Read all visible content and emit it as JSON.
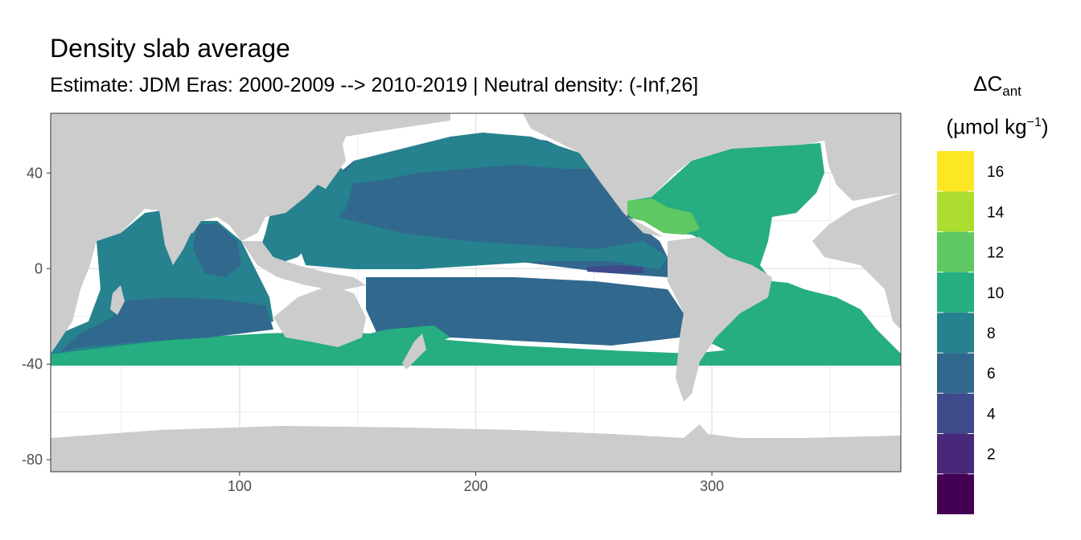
{
  "title": "Density slab average",
  "subtitle": "Estimate: JDM Eras: 2000-2009 --> 2010-2019 | Neutral density: (-Inf,26]",
  "colors": {
    "land": "#cccccc",
    "no_data": "#ffffff",
    "panel_border": "#333333",
    "grid": "#ebebeb"
  },
  "chart_data": {
    "type": "heatmap",
    "map_kind": "global ocean field on longitude-latitude grid",
    "x_ticks": [
      100,
      200,
      300
    ],
    "y_ticks": [
      40,
      0,
      -40,
      -80
    ],
    "xlim": [
      20,
      380
    ],
    "ylim": [
      -85,
      65
    ],
    "grid": true,
    "legend": {
      "position": "right",
      "title_main": "ΔC",
      "title_sub": "ant",
      "unit_prefix": "(µmol kg",
      "unit_sup": "−1",
      "unit_suffix": ")",
      "bins": [
        {
          "min": 0,
          "max": 2,
          "color": "#440154"
        },
        {
          "min": 2,
          "max": 4,
          "color": "#482878"
        },
        {
          "min": 4,
          "max": 6,
          "color": "#3e4a89"
        },
        {
          "min": 6,
          "max": 8,
          "color": "#31688e"
        },
        {
          "min": 8,
          "max": 10,
          "color": "#26828e"
        },
        {
          "min": 10,
          "max": 12,
          "color": "#26ad81"
        },
        {
          "min": 12,
          "max": 14,
          "color": "#5ec962"
        },
        {
          "min": 14,
          "max": 16,
          "color": "#addc30"
        },
        {
          "min": 16,
          "max": 18,
          "color": "#fde725"
        }
      ],
      "labels": [
        {
          "value": 2,
          "text": "2"
        },
        {
          "value": 4,
          "text": "4"
        },
        {
          "value": 6,
          "text": "6"
        },
        {
          "value": 8,
          "text": "8"
        },
        {
          "value": 10,
          "text": "10"
        },
        {
          "value": 12,
          "text": "12"
        },
        {
          "value": 14,
          "text": "14"
        },
        {
          "value": 16,
          "text": "16"
        }
      ]
    },
    "regions": [
      {
        "name": "north-pacific-gyre",
        "value_bin": "6-8"
      },
      {
        "name": "subpolar-north-pacific",
        "value_bin": "8-10"
      },
      {
        "name": "eastern-tropical-pacific",
        "value_bin": "6-8"
      },
      {
        "name": "equatorial-pacific-band",
        "value_bin": "8-10"
      },
      {
        "name": "south-pacific-subtropics",
        "value_bin": "6-8"
      },
      {
        "name": "southern-ocean-band",
        "value_bin": "10-12"
      },
      {
        "name": "atlantic",
        "value_bin": "10-12"
      },
      {
        "name": "caribbean",
        "value_bin": "12-14"
      },
      {
        "name": "indian-ocean",
        "value_bin": "8-10"
      },
      {
        "name": "bay-of-bengal",
        "value_bin": "6-8"
      },
      {
        "name": "south-indian-subtropics",
        "value_bin": "6-8"
      },
      {
        "name": "east-pacific-low-pocket",
        "value_bin": "4-6"
      }
    ]
  }
}
